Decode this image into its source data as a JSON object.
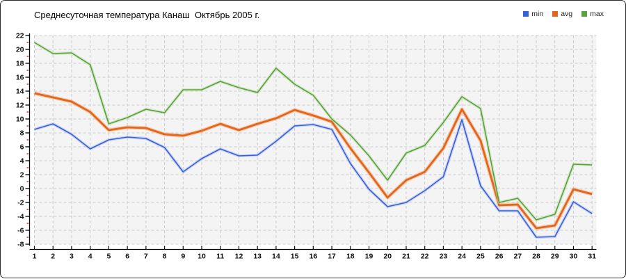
{
  "chart": {
    "title": "Среднесуточная температура Канаш  Октябрь 2005 г."
  },
  "legend": {
    "items": [
      {
        "label": "min",
        "color": "#3b5fd9"
      },
      {
        "label": "avg",
        "color": "#e2661e"
      },
      {
        "label": "max",
        "color": "#58a33b"
      }
    ]
  },
  "chart_data": {
    "type": "line",
    "title": "Среднесуточная температура Канаш  Октябрь 2005 г.",
    "x": [
      1,
      2,
      3,
      4,
      5,
      6,
      7,
      8,
      9,
      10,
      11,
      12,
      13,
      14,
      15,
      16,
      17,
      18,
      19,
      20,
      21,
      22,
      23,
      24,
      25,
      26,
      27,
      28,
      29,
      30,
      31
    ],
    "xticks": [
      1,
      2,
      3,
      4,
      5,
      6,
      7,
      8,
      9,
      10,
      11,
      12,
      13,
      14,
      15,
      16,
      17,
      18,
      19,
      20,
      21,
      22,
      23,
      24,
      25,
      26,
      27,
      28,
      29,
      30,
      31
    ],
    "yticks": [
      22,
      20,
      18,
      16,
      14,
      12,
      10,
      8,
      6,
      4,
      2,
      0,
      -2,
      -4,
      -6,
      -8
    ],
    "ylim": [
      -8,
      22
    ],
    "xlim": [
      1,
      31
    ],
    "grid": "dashed",
    "legend_position": "top-right",
    "plot_bg_color": "#f4f4f4",
    "grid_color": "#cccccc",
    "axis_color": "#000000",
    "minor_tick_color": "#cc0000",
    "series": [
      {
        "name": "min",
        "color": "#3b5fd9",
        "halo": "#a8bbec",
        "width": 1.6,
        "values": [
          8.5,
          9.3,
          7.8,
          5.7,
          7.0,
          7.4,
          7.2,
          5.9,
          2.4,
          4.3,
          5.7,
          4.7,
          4.8,
          6.8,
          9.0,
          9.2,
          8.5,
          3.6,
          -0.1,
          -2.6,
          -2.0,
          -0.3,
          1.7,
          9.9,
          0.4,
          -3.2,
          -3.2,
          -7.0,
          -6.9,
          -1.9,
          -3.6
        ]
      },
      {
        "name": "avg",
        "color": "#e2661e",
        "halo": "#f4ab72",
        "width": 2.8,
        "values": [
          13.7,
          13.1,
          12.5,
          11.0,
          8.4,
          8.8,
          8.7,
          7.8,
          7.6,
          8.3,
          9.3,
          8.4,
          9.3,
          10.1,
          11.3,
          10.5,
          9.6,
          5.8,
          2.3,
          -1.3,
          1.2,
          2.4,
          5.8,
          11.4,
          6.9,
          -2.4,
          -2.3,
          -5.7,
          -5.3,
          -0.1,
          -0.8
        ]
      },
      {
        "name": "max",
        "color": "#58a33b",
        "halo": "#bcd9a6",
        "width": 1.6,
        "values": [
          21.0,
          19.4,
          19.5,
          17.8,
          9.3,
          10.2,
          11.4,
          10.9,
          14.2,
          14.2,
          15.4,
          14.5,
          13.8,
          17.3,
          15.0,
          13.4,
          10.0,
          7.7,
          4.7,
          1.2,
          5.1,
          6.2,
          9.5,
          13.2,
          11.5,
          -2.0,
          -1.4,
          -4.5,
          -3.7,
          3.5,
          3.4
        ]
      }
    ]
  }
}
